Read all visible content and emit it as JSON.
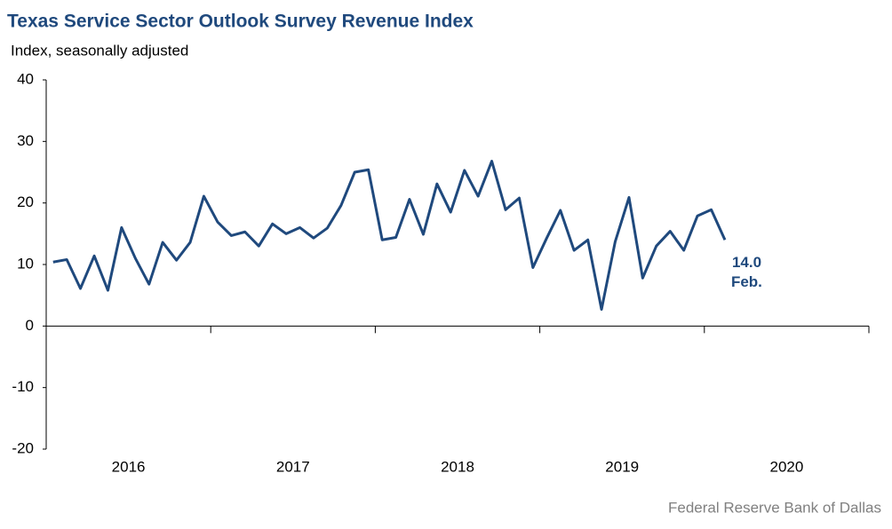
{
  "chart_data": {
    "type": "line",
    "title": "Texas Service Sector Outlook Survey Revenue Index",
    "subtitle": "Index, seasonally adjusted",
    "source": "Federal Reserve Bank of Dallas",
    "annotation": "Feb.",
    "x": [
      2016.042,
      2016.125,
      2016.208,
      2016.292,
      2016.375,
      2016.458,
      2016.542,
      2016.625,
      2016.708,
      2016.792,
      2016.875,
      2016.958,
      2017.042,
      2017.125,
      2017.208,
      2017.292,
      2017.375,
      2017.458,
      2017.542,
      2017.625,
      2017.708,
      2017.792,
      2017.875,
      2017.958,
      2018.042,
      2018.125,
      2018.208,
      2018.292,
      2018.375,
      2018.458,
      2018.542,
      2018.625,
      2018.708,
      2018.792,
      2018.875,
      2018.958,
      2019.042,
      2019.125,
      2019.208,
      2019.292,
      2019.375,
      2019.458,
      2019.542,
      2019.625,
      2019.708,
      2019.792,
      2019.875,
      2019.958,
      2020.042,
      2020.125
    ],
    "series": [
      {
        "name": "Revenue index",
        "color": "#1f497d",
        "values": [
          10.4,
          10.8,
          6.1,
          11.4,
          5.8,
          16.0,
          11.0,
          6.8,
          13.6,
          10.7,
          13.6,
          21.1,
          16.9,
          14.7,
          15.3,
          13.0,
          16.6,
          15.0,
          16.0,
          14.3,
          15.9,
          19.6,
          25.0,
          25.4,
          14.0,
          14.4,
          20.6,
          14.9,
          23.1,
          18.5,
          25.3,
          21.1,
          26.8,
          18.9,
          20.8,
          9.5,
          14.3,
          18.8,
          12.3,
          14.0,
          2.7,
          13.7,
          20.9,
          7.8,
          13.0,
          15.4,
          12.3,
          17.9,
          18.9,
          14.0
        ],
        "value_labels": [
          null,
          null,
          null,
          null,
          null,
          null,
          null,
          null,
          null,
          null,
          null,
          null,
          null,
          null,
          null,
          null,
          null,
          null,
          null,
          null,
          null,
          null,
          null,
          null,
          null,
          null,
          null,
          null,
          null,
          null,
          null,
          null,
          null,
          null,
          null,
          null,
          null,
          null,
          null,
          null,
          null,
          null,
          null,
          null,
          null,
          null,
          null,
          null,
          null,
          "14.0"
        ]
      }
    ],
    "xlim": [
      2016,
      2021
    ],
    "xticks": [
      {
        "value": 2016.5,
        "label": "2016"
      },
      {
        "value": 2017.5,
        "label": "2017"
      },
      {
        "value": 2018.5,
        "label": "2018"
      },
      {
        "value": 2019.5,
        "label": "2019"
      },
      {
        "value": 2020.5,
        "label": "2020"
      }
    ],
    "xminor_ticks": [
      2017,
      2018,
      2019,
      2020,
      2021
    ],
    "ylim": [
      -20,
      40
    ],
    "yticks": [
      -20,
      -10,
      0,
      10,
      20,
      30,
      40
    ],
    "grid": false
  }
}
